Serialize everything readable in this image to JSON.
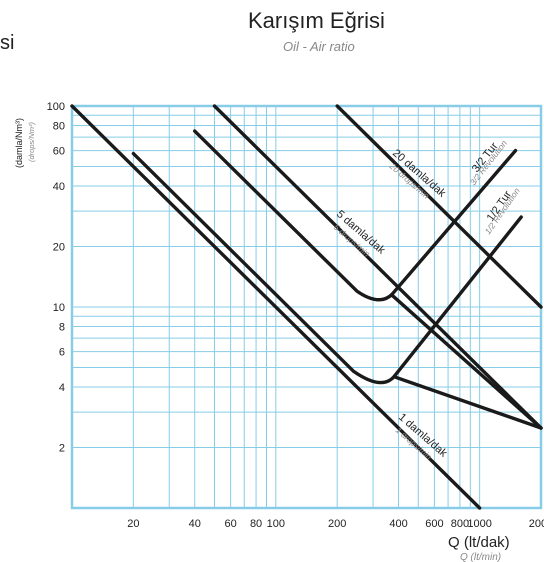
{
  "left_cut_text": "si",
  "chart_data": {
    "type": "line",
    "title": "Karışım Eğrisi",
    "subtitle": "Oil - Air ratio",
    "xlabel": "Q (lt/dak)",
    "xlabel_sub": "Q (lt/min)",
    "ylabel": "(damla/Nm³)",
    "ylabel_sub": "(drops/Nm³)",
    "xscale": "log",
    "yscale": "log",
    "xlim": [
      10,
      2000
    ],
    "ylim": [
      1,
      100
    ],
    "x_ticks": [
      20,
      40,
      60,
      80,
      100,
      200,
      400,
      600,
      800,
      1000,
      2000
    ],
    "x_tick_labels": [
      "20",
      "40",
      "60",
      "80",
      "100",
      "200",
      "400",
      "600",
      "800",
      "1000",
      "2000"
    ],
    "y_ticks": [
      2,
      4,
      6,
      8,
      10,
      20,
      40,
      60,
      80,
      100
    ],
    "y_tick_labels": [
      "2",
      "4",
      "6",
      "8",
      "10",
      "20",
      "40",
      "60",
      "80",
      "100"
    ],
    "grid": true,
    "grid_color": "#87cde8",
    "line_color": "#1a1a1a",
    "series": [
      {
        "name": "1 damla/dak",
        "sub": "1 drops/min",
        "points": [
          [
            10,
            100
          ],
          [
            1000,
            1
          ]
        ]
      },
      {
        "name": "5 damla/dak",
        "sub": "5 drops/min",
        "points": [
          [
            40,
            75
          ],
          [
            250,
            12
          ],
          [
            320,
            10.8
          ],
          [
            370,
            11.5
          ],
          [
            2000,
            2.5
          ]
        ]
      },
      {
        "name": "20 damla/dak",
        "sub": "20 drops/min",
        "points": [
          [
            200,
            100
          ],
          [
            2000,
            10
          ]
        ]
      },
      {
        "name": "",
        "points": [
          [
            20,
            58
          ],
          [
            240,
            4.8
          ],
          [
            330,
            4.1
          ],
          [
            380,
            4.5
          ],
          [
            2000,
            2.5
          ]
        ]
      },
      {
        "name": "",
        "points": [
          [
            50,
            100
          ],
          [
            2000,
            2.5
          ]
        ]
      },
      {
        "name": "3/2 Tur",
        "sub": "3/2 Revolution",
        "points": [
          [
            370,
            11.5
          ],
          [
            1500,
            60
          ]
        ]
      },
      {
        "name": "1/2 Tur",
        "sub": "1/2 Revolution",
        "points": [
          [
            380,
            4.5
          ],
          [
            1600,
            28
          ]
        ]
      }
    ]
  }
}
